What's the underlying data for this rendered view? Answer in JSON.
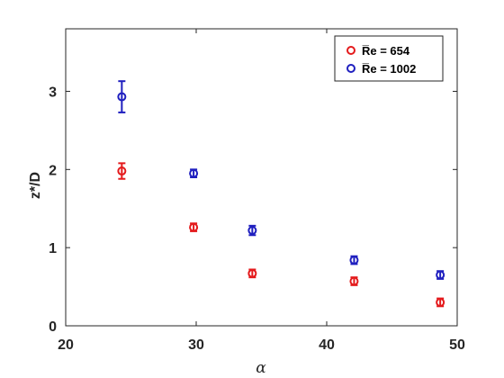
{
  "chart_data": {
    "type": "scatter",
    "xlabel": "α",
    "ylabel": "z*/D",
    "xlim": [
      20,
      50
    ],
    "ylim": [
      0,
      3.8
    ],
    "xticks": [
      "20",
      "30",
      "40",
      "50"
    ],
    "yticks": [
      "0",
      "1",
      "2",
      "3"
    ],
    "grid": false,
    "legend_position": "top-right",
    "series": [
      {
        "name": "R̅e = 654",
        "color": "#e41a1c",
        "marker": "open-circle",
        "x": [
          24.3,
          29.8,
          34.3,
          42.1,
          48.7
        ],
        "y": [
          1.98,
          1.26,
          0.67,
          0.57,
          0.3
        ],
        "err": [
          0.1,
          0.05,
          0.05,
          0.05,
          0.05
        ]
      },
      {
        "name": "R̅e = 1002",
        "color": "#1f1fbf",
        "marker": "open-circle",
        "x": [
          24.3,
          29.8,
          34.3,
          42.1,
          48.7
        ],
        "y": [
          2.93,
          1.95,
          1.22,
          0.84,
          0.65
        ],
        "err": [
          0.2,
          0.05,
          0.06,
          0.05,
          0.05
        ]
      }
    ]
  }
}
